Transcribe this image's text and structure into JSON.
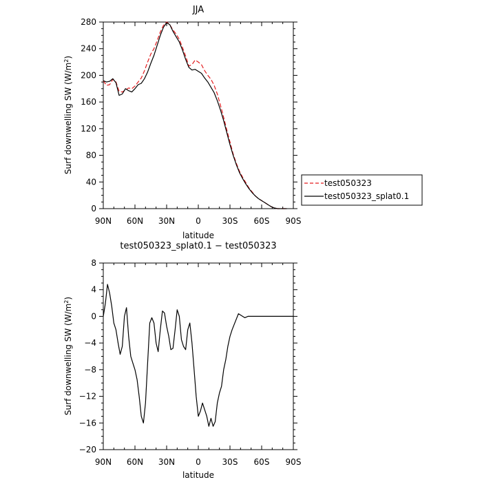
{
  "chart_data": [
    {
      "type": "line",
      "title": "JJA",
      "xlabel": "latitude",
      "ylabel": "Surf downwelling SW (W/m²)",
      "xlim": [
        90,
        -90
      ],
      "ylim": [
        0,
        280
      ],
      "x_ticks": [
        90,
        60,
        30,
        0,
        -30,
        -60,
        -90
      ],
      "x_tick_labels": [
        "90N",
        "60N",
        "30N",
        "0",
        "30S",
        "60S",
        "90S"
      ],
      "y_ticks": [
        0,
        40,
        80,
        120,
        160,
        200,
        240,
        280
      ],
      "y_tick_labels": [
        "0",
        "40",
        "80",
        "120",
        "160",
        "200",
        "240",
        "280"
      ],
      "legend_position": "right",
      "series": [
        {
          "name": "test050323",
          "color": "#e31a1c",
          "dash": "dashed",
          "x": [
            90,
            87,
            84,
            81,
            78,
            75,
            72,
            69,
            66,
            63,
            60,
            57,
            54,
            51,
            48,
            45,
            42,
            39,
            36,
            33,
            30,
            27,
            24,
            21,
            18,
            15,
            12,
            9,
            6,
            3,
            0,
            -3,
            -6,
            -9,
            -12,
            -15,
            -18,
            -21,
            -24,
            -27,
            -30,
            -33,
            -36,
            -39,
            -42,
            -45,
            -48,
            -51,
            -54,
            -57,
            -60,
            -63,
            -66,
            -69,
            -72,
            -75,
            -78,
            -81,
            -84
          ],
          "y": [
            192,
            185,
            186,
            194,
            190,
            176,
            175,
            178,
            181,
            180,
            184,
            190,
            196,
            207,
            220,
            232,
            240,
            252,
            265,
            275,
            280,
            276,
            268,
            262,
            254,
            242,
            229,
            214,
            216,
            223,
            220,
            216,
            207,
            200,
            194,
            185,
            172,
            155,
            137,
            118,
            100,
            82,
            68,
            56,
            47,
            39,
            31,
            25,
            19,
            15,
            12,
            9,
            6,
            3,
            1,
            0,
            0,
            0,
            0
          ]
        },
        {
          "name": "test050323_splat0.1",
          "color": "#000000",
          "dash": "solid",
          "x": [
            90,
            87,
            84,
            81,
            78,
            75,
            72,
            69,
            66,
            63,
            60,
            57,
            54,
            51,
            48,
            45,
            42,
            39,
            36,
            33,
            30,
            27,
            24,
            21,
            18,
            15,
            12,
            9,
            6,
            3,
            0,
            -3,
            -6,
            -9,
            -12,
            -15,
            -18,
            -21,
            -24,
            -27,
            -30,
            -33,
            -36,
            -39,
            -42,
            -45,
            -48,
            -51,
            -54,
            -57,
            -60,
            -63,
            -66,
            -69,
            -72,
            -75,
            -78,
            -81,
            -84
          ],
          "y": [
            192,
            190,
            191,
            195,
            189,
            170,
            172,
            180,
            177,
            175,
            180,
            186,
            188,
            195,
            205,
            218,
            230,
            245,
            260,
            272,
            279,
            276,
            266,
            258,
            250,
            238,
            224,
            212,
            208,
            209,
            206,
            203,
            196,
            190,
            182,
            174,
            162,
            148,
            132,
            114,
            96,
            80,
            66,
            54,
            45,
            37,
            30,
            24,
            19,
            15,
            12,
            9,
            6,
            3,
            1,
            0,
            0,
            0,
            0
          ]
        }
      ]
    },
    {
      "type": "line",
      "title": "test050323_splat0.1 − test050323",
      "xlabel": "latitude",
      "ylabel": "Surf downwelling SW (W/m²)",
      "xlim": [
        90,
        -90
      ],
      "ylim": [
        -20,
        8
      ],
      "x_ticks": [
        90,
        60,
        30,
        0,
        -30,
        -60,
        -90
      ],
      "x_tick_labels": [
        "90N",
        "60N",
        "30N",
        "0",
        "30S",
        "60S",
        "90S"
      ],
      "y_ticks": [
        8,
        4,
        0,
        -4,
        -8,
        -12,
        -16,
        -20
      ],
      "y_tick_labels": [
        "8",
        "4",
        "0",
        "−4",
        "−8",
        "−12",
        "−16",
        "−20"
      ],
      "series": [
        {
          "color": "#000000",
          "dash": "solid",
          "x": [
            90,
            88,
            86,
            84,
            82,
            80,
            78,
            76,
            74,
            72,
            70,
            68,
            66,
            64,
            62,
            60,
            58,
            56,
            54,
            52,
            50,
            48,
            46,
            44,
            42,
            40,
            38,
            36,
            34,
            32,
            30,
            28,
            26,
            24,
            22,
            20,
            18,
            16,
            14,
            12,
            10,
            8,
            6,
            4,
            2,
            0,
            -2,
            -4,
            -6,
            -8,
            -10,
            -12,
            -14,
            -16,
            -18,
            -20,
            -22,
            -24,
            -26,
            -28,
            -30,
            -32,
            -35,
            -38,
            -41,
            -44,
            -47,
            -50,
            -53,
            -56,
            -59,
            -62,
            -65,
            -68,
            -71,
            -75,
            -80,
            -85,
            -90
          ],
          "y": [
            0,
            2,
            4.8,
            3.5,
            1.5,
            -1,
            -2,
            -4,
            -5.7,
            -4.5,
            0,
            1.3,
            -3,
            -6,
            -7,
            -8,
            -9.5,
            -12,
            -15,
            -16,
            -13,
            -7,
            -1,
            -0.2,
            -1,
            -4,
            -5.3,
            -2,
            0.8,
            0.5,
            -1.5,
            -3,
            -5,
            -4.8,
            -2,
            1,
            0,
            -3.5,
            -4.5,
            -5,
            -2,
            -1,
            -4,
            -8,
            -12,
            -15,
            -14.2,
            -13,
            -14,
            -15,
            -16.5,
            -15.3,
            -16.5,
            -15.8,
            -13,
            -11.5,
            -10.5,
            -8,
            -6.5,
            -4.5,
            -3,
            -2,
            -0.8,
            0.4,
            0.1,
            -0.2,
            0,
            0,
            0,
            0,
            0,
            0,
            0,
            0,
            0,
            0,
            0,
            0,
            0
          ]
        }
      ]
    }
  ]
}
